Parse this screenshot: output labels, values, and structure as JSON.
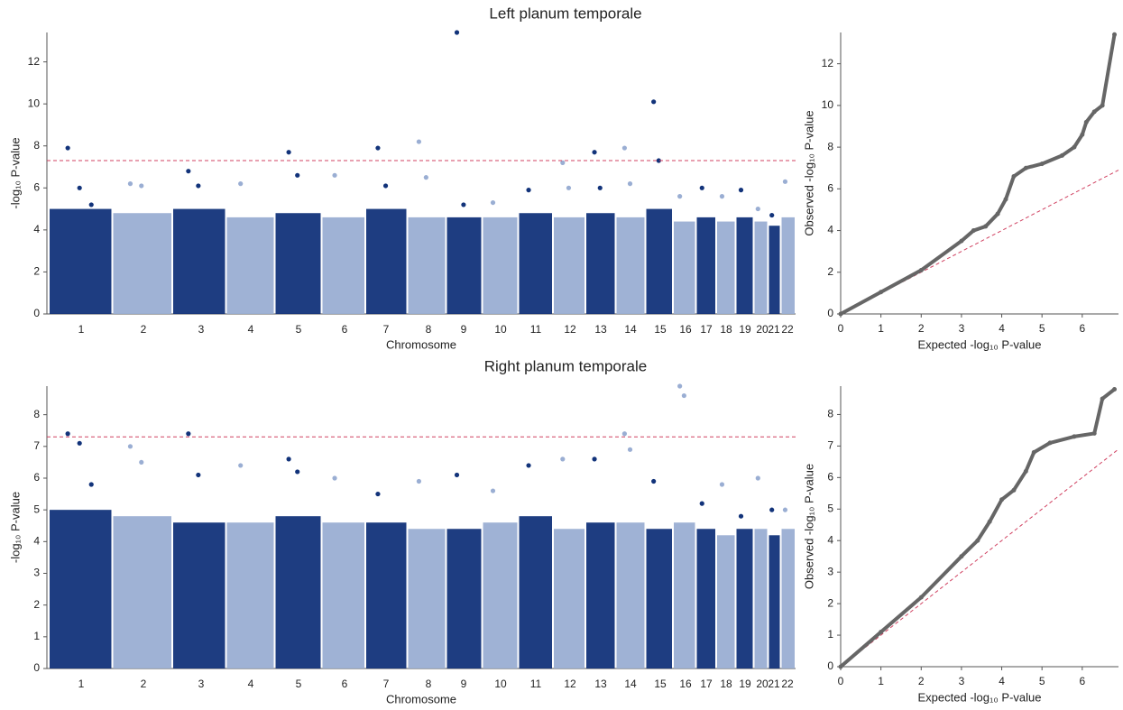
{
  "chart_data": [
    {
      "type": "manhattan",
      "title": "Left planum temporale",
      "x_label": "Chromosome",
      "y_label": "-log₁₀ P-value",
      "ylim": [
        0,
        13.4
      ],
      "yticks": [
        0,
        2,
        4,
        6,
        8,
        10,
        12
      ],
      "threshold": 7.3,
      "colors": [
        "#12337a",
        "#9aaed3"
      ],
      "categories": [
        "1",
        "2",
        "3",
        "4",
        "5",
        "6",
        "7",
        "8",
        "9",
        "10",
        "11",
        "12",
        "13",
        "14",
        "15",
        "16",
        "17",
        "18",
        "19",
        "20",
        "21",
        "22"
      ],
      "cloud_top": [
        5.0,
        4.8,
        5.0,
        4.6,
        4.8,
        4.6,
        5.0,
        4.6,
        4.6,
        4.6,
        4.8,
        4.6,
        4.8,
        4.6,
        5.0,
        4.4,
        4.6,
        4.4,
        4.6,
        4.4,
        4.2,
        4.6
      ],
      "peaks": [
        [
          7.9,
          6.0,
          5.2
        ],
        [
          6.2,
          6.1
        ],
        [
          6.8,
          6.1
        ],
        [
          6.2
        ],
        [
          7.7,
          6.6
        ],
        [
          6.6
        ],
        [
          7.9,
          6.1
        ],
        [
          8.2,
          6.5
        ],
        [
          13.4,
          5.2
        ],
        [
          5.3
        ],
        [
          5.9
        ],
        [
          7.2,
          6.0
        ],
        [
          7.7,
          6.0
        ],
        [
          7.9,
          6.2
        ],
        [
          10.1,
          7.3
        ],
        [
          5.6
        ],
        [
          6.0
        ],
        [
          5.6
        ],
        [
          5.9
        ],
        [
          5.0
        ],
        [
          4.7
        ],
        [
          6.3
        ]
      ]
    },
    {
      "type": "manhattan",
      "title": "Right planum temporale",
      "x_label": "Chromosome",
      "y_label": "-log₁₀ P-value",
      "ylim": [
        0,
        8.9
      ],
      "yticks": [
        0,
        1,
        2,
        3,
        4,
        5,
        6,
        7,
        8
      ],
      "threshold": 7.3,
      "colors": [
        "#12337a",
        "#9aaed3"
      ],
      "categories": [
        "1",
        "2",
        "3",
        "4",
        "5",
        "6",
        "7",
        "8",
        "9",
        "10",
        "11",
        "12",
        "13",
        "14",
        "15",
        "16",
        "17",
        "18",
        "19",
        "20",
        "21",
        "22"
      ],
      "cloud_top": [
        5.0,
        4.8,
        4.6,
        4.6,
        4.8,
        4.6,
        4.6,
        4.4,
        4.4,
        4.6,
        4.8,
        4.4,
        4.6,
        4.6,
        4.4,
        4.6,
        4.4,
        4.2,
        4.4,
        4.4,
        4.2,
        4.4
      ],
      "peaks": [
        [
          7.4,
          7.1,
          5.8
        ],
        [
          7.0,
          6.5
        ],
        [
          7.4,
          6.1
        ],
        [
          6.4
        ],
        [
          6.6,
          6.2
        ],
        [
          6.0
        ],
        [
          5.5
        ],
        [
          5.9
        ],
        [
          6.1
        ],
        [
          5.6
        ],
        [
          6.4
        ],
        [
          6.6
        ],
        [
          6.6
        ],
        [
          7.4,
          6.9
        ],
        [
          5.9
        ],
        [
          8.9,
          8.6
        ],
        [
          5.2
        ],
        [
          5.8
        ],
        [
          4.8
        ],
        [
          6.0
        ],
        [
          5.0
        ],
        [
          5.0
        ]
      ]
    },
    {
      "type": "qq",
      "x_label": "Expected -log₁₀ P-value",
      "y_label": "Observed -log₁₀ P-value",
      "xlim": [
        0,
        6.9
      ],
      "ylim": [
        0,
        13.5
      ],
      "xticks": [
        0,
        1,
        2,
        3,
        4,
        5,
        6
      ],
      "yticks": [
        0,
        2,
        4,
        6,
        8,
        10,
        12
      ],
      "color": "#666666",
      "reference_line": true,
      "reference_color": "#d04060",
      "x": [
        0,
        1,
        2,
        3,
        3.3,
        3.6,
        3.9,
        4.1,
        4.3,
        4.6,
        5.0,
        5.5,
        5.8,
        6.0,
        6.1,
        6.3,
        6.5,
        6.8
      ],
      "y": [
        0,
        1.05,
        2.1,
        3.5,
        4.0,
        4.2,
        4.8,
        5.5,
        6.6,
        7.0,
        7.2,
        7.6,
        8.0,
        8.6,
        9.2,
        9.7,
        10.0,
        13.4
      ]
    },
    {
      "type": "qq",
      "x_label": "Expected -log₁₀ P-value",
      "y_label": "Observed -log₁₀ P-value",
      "xlim": [
        0,
        6.9
      ],
      "ylim": [
        0,
        8.9
      ],
      "xticks": [
        0,
        1,
        2,
        3,
        4,
        5,
        6
      ],
      "yticks": [
        0,
        1,
        2,
        3,
        4,
        5,
        6,
        7,
        8
      ],
      "color": "#666666",
      "reference_line": true,
      "reference_color": "#d04060",
      "x": [
        0,
        1,
        2,
        3,
        3.4,
        3.7,
        4.0,
        4.3,
        4.6,
        4.8,
        5.2,
        5.8,
        6.3,
        6.5,
        6.8
      ],
      "y": [
        0,
        1.1,
        2.2,
        3.5,
        4.0,
        4.6,
        5.3,
        5.6,
        6.2,
        6.8,
        7.1,
        7.3,
        7.4,
        8.5,
        8.8
      ]
    }
  ]
}
